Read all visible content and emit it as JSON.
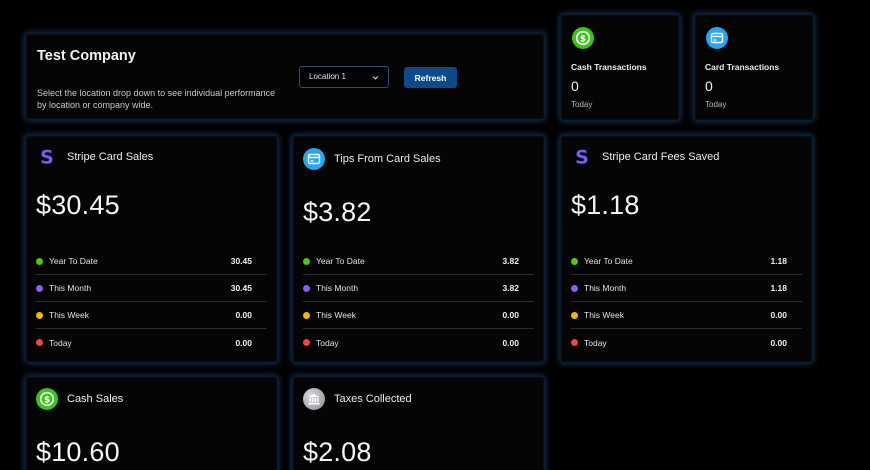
{
  "company": {
    "title": "Test Company",
    "description": "Select the location drop down to see individual performance by location or company wide.",
    "location_selected": "Location 1",
    "refresh_label": "Refresh"
  },
  "mini_cards": {
    "cash_transactions": {
      "label": "Cash Transactions",
      "value": "0",
      "sub": "Today",
      "icon": "dollar-coin-icon",
      "color": "#3cc41a"
    },
    "card_transactions": {
      "label": "Card Transactions",
      "value": "0",
      "sub": "Today",
      "icon": "credit-card-icon",
      "color": "#2aa5f0"
    }
  },
  "legend_colors": {
    "year_to_date": "#52c41a",
    "this_month": "#8b5cf6",
    "this_week": "#f5b800",
    "today": "#ef4444"
  },
  "stripe_sales": {
    "title": "Stripe Card Sales",
    "amount": "$30.45",
    "icon": "stripe-icon",
    "rows": [
      {
        "label": "Year To Date",
        "value": "30.45"
      },
      {
        "label": "This Month",
        "value": "30.45"
      },
      {
        "label": "This Week",
        "value": "0.00"
      },
      {
        "label": "Today",
        "value": "0.00"
      }
    ]
  },
  "tips": {
    "title": "Tips From Card Sales",
    "amount": "$3.82",
    "icon": "credit-card-icon",
    "rows": [
      {
        "label": "Year To Date",
        "value": "3.82"
      },
      {
        "label": "This Month",
        "value": "3.82"
      },
      {
        "label": "This Week",
        "value": "0.00"
      },
      {
        "label": "Today",
        "value": "0.00"
      }
    ]
  },
  "fees_saved": {
    "title": "Stripe Card Fees Saved",
    "amount": "$1.18",
    "icon": "stripe-icon",
    "rows": [
      {
        "label": "Year To Date",
        "value": "1.18"
      },
      {
        "label": "This Month",
        "value": "1.18"
      },
      {
        "label": "This Week",
        "value": "0.00"
      },
      {
        "label": "Today",
        "value": "0.00"
      }
    ]
  },
  "cash_sales": {
    "title": "Cash Sales",
    "amount": "$10.60",
    "icon": "dollar-coin-icon"
  },
  "taxes": {
    "title": "Taxes Collected",
    "amount": "$2.08",
    "icon": "bank-icon"
  }
}
